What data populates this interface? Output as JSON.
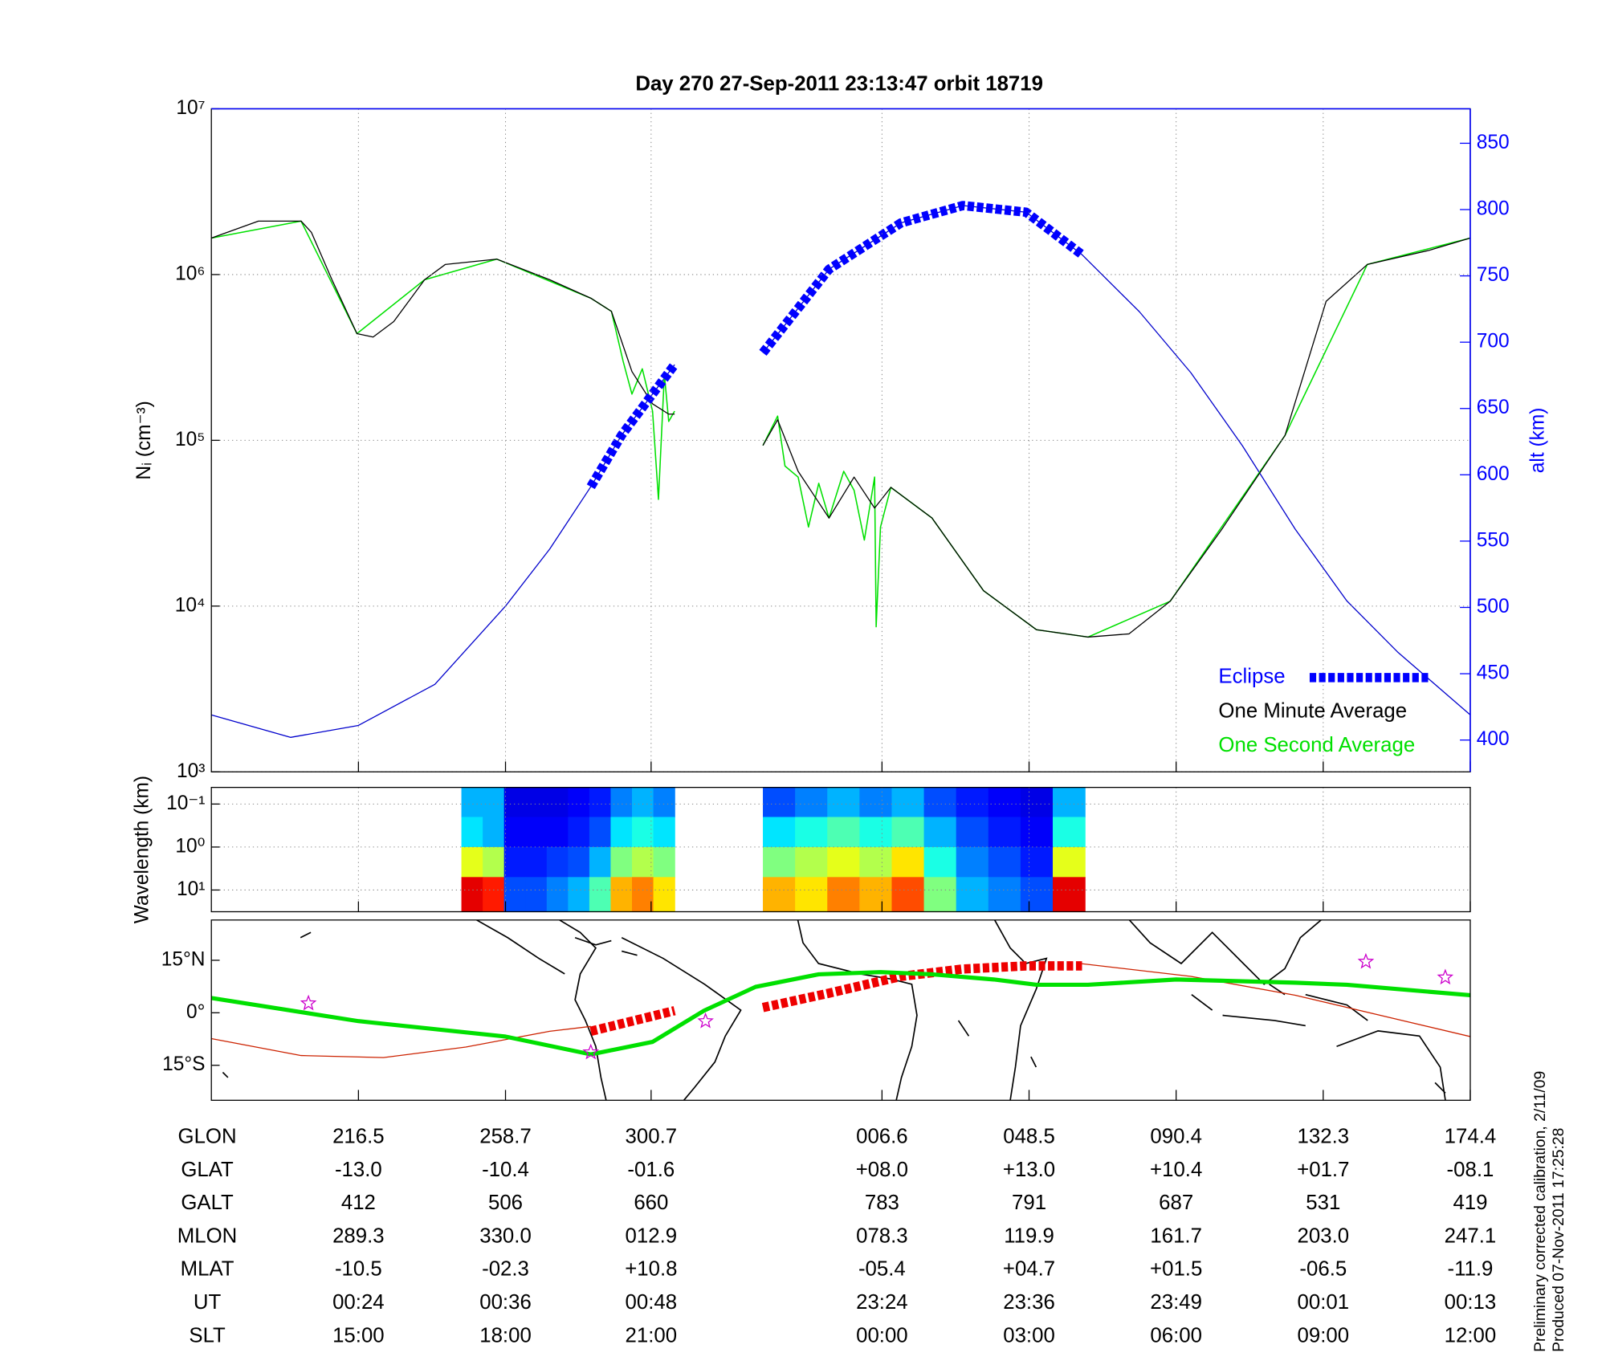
{
  "chart_data": [
    {
      "type": "line",
      "title": "Day 270  27-Sep-2011 23:13:47   orbit 18719",
      "ylabel": "Nᵢ (cm⁻³)",
      "y2label": "alt (km)",
      "log_y": true,
      "ylim": [
        1000,
        10000000
      ],
      "yticks": [
        {
          "value": 1000,
          "label": "10³"
        },
        {
          "value": 10000,
          "label": "10⁴"
        },
        {
          "value": 100000,
          "label": "10⁵"
        },
        {
          "value": 1000000,
          "label": "10⁶"
        },
        {
          "value": 10000000,
          "label": "10⁷"
        }
      ],
      "y2lim": [
        376,
        876
      ],
      "y2ticks": [
        400,
        450,
        500,
        550,
        600,
        650,
        700,
        750,
        800,
        850
      ],
      "y2color": "#0000ff",
      "xlim": [
        0,
        8.56
      ],
      "xticks": [
        1,
        2,
        2.99,
        4.56,
        5.56,
        6.56,
        7.56,
        8.56
      ],
      "grid": true,
      "legend": "lower right",
      "series": [
        {
          "name": "Eclipse",
          "color": "#0000ff",
          "axis": "y2",
          "line_width": 9,
          "dashed": true,
          "x": [
            2.58,
            2.79,
            3.15,
            null,
            3.75,
            4.2,
            4.69,
            5.11,
            5.54,
            5.92
          ],
          "values": [
            591,
            630,
            683,
            null,
            692,
            755,
            790,
            803,
            798,
            766
          ]
        },
        {
          "name": "One Minute Average",
          "color": "#000000",
          "line_width": 1,
          "x": [
            0,
            0.32,
            0.61,
            0.68,
            0.82,
            0.99,
            1.1,
            1.24,
            1.45,
            1.59,
            1.94,
            2.3,
            2.58,
            2.72,
            2.86,
            3.0,
            3.11,
            3.15,
            null,
            3.75,
            3.85,
            3.99,
            4.2,
            4.37,
            4.51,
            4.62,
            4.9,
            5.25,
            5.61,
            5.96,
            6.24,
            6.52,
            6.87,
            7.3,
            7.58,
            7.86,
            8.28,
            8.56
          ],
          "values": [
            1660000,
            2100000,
            2100000,
            1800000,
            930000,
            440000,
            420000,
            520000,
            930000,
            1150000,
            1240000,
            930000,
            720000,
            600000,
            260000,
            166000,
            144000,
            144000,
            null,
            93000,
            133000,
            65000,
            34000,
            60000,
            39000,
            52000,
            34000,
            12400,
            7200,
            6500,
            6800,
            10700,
            29000,
            107000,
            690000,
            1150000,
            1400000,
            1660000
          ]
        },
        {
          "name": "One Second Average",
          "color": "#00e000",
          "line_width": 1.2,
          "x": [
            0,
            0.61,
            0.99,
            1.45,
            1.94,
            2.58,
            2.72,
            2.8,
            2.86,
            2.93,
            3.0,
            3.04,
            3.08,
            3.11,
            3.15,
            null,
            3.75,
            3.85,
            3.9,
            3.99,
            4.06,
            4.13,
            4.2,
            4.3,
            4.37,
            4.44,
            4.51,
            4.52,
            4.55,
            4.62,
            4.9,
            5.25,
            5.61,
            5.96,
            6.52,
            7.3,
            7.86,
            8.56
          ],
          "values": [
            1660000,
            2100000,
            440000,
            930000,
            1240000,
            720000,
            600000,
            300000,
            190000,
            270000,
            150000,
            44000,
            250000,
            130000,
            150000,
            null,
            93000,
            140000,
            70000,
            60000,
            30000,
            55000,
            34000,
            65000,
            50000,
            25000,
            60000,
            7500,
            30000,
            52000,
            34000,
            12400,
            7200,
            6500,
            10700,
            107000,
            1150000,
            1660000
          ]
        },
        {
          "color": "#0000cc",
          "axis": "y2",
          "line_width": 1,
          "x": [
            0,
            0.54,
            1.0,
            1.52,
            2.0,
            2.3,
            2.58,
            2.79,
            3.15,
            null,
            3.75,
            4.2,
            4.69,
            5.11,
            5.54,
            5.92,
            6.31,
            6.66,
            7.01,
            7.37,
            7.72,
            8.07,
            8.56
          ],
          "values": [
            419,
            402,
            411,
            442,
            501,
            544,
            591,
            630,
            683,
            null,
            692,
            755,
            790,
            803,
            798,
            766,
            723,
            677,
            622,
            559,
            505,
            466,
            419
          ]
        }
      ]
    },
    {
      "type": "heatmap",
      "ylabel": "Wavelength (km)",
      "log_y": true,
      "y_inverted": true,
      "ylim": [
        0.041,
        32
      ],
      "yticks": [
        {
          "value": 0.1,
          "label": "10⁻¹"
        },
        {
          "value": 1,
          "label": "10⁰"
        },
        {
          "value": 10,
          "label": "10¹"
        }
      ],
      "xlim": [
        0,
        8.56
      ],
      "xticks": [
        1,
        2,
        2.99,
        4.56,
        5.56,
        6.56,
        7.56,
        8.56
      ],
      "grid": true,
      "colormap": "jet",
      "y_edges": [
        0.041,
        0.2,
        1,
        5,
        32
      ],
      "blocks": [
        {
          "x_edges": [
            1.7,
            1.845,
            1.99,
            2.135,
            2.28,
            2.425,
            2.57,
            2.715,
            2.86,
            3.005,
            3.15
          ],
          "z": [
            [
              0.3,
              0.3,
              0.1,
              0.1,
              0.1,
              0.12,
              0.15,
              0.25,
              0.3,
              0.25
            ],
            [
              0.35,
              0.3,
              0.12,
              0.12,
              0.12,
              0.15,
              0.2,
              0.35,
              0.4,
              0.35
            ],
            [
              0.6,
              0.55,
              0.15,
              0.15,
              0.18,
              0.2,
              0.3,
              0.5,
              0.55,
              0.5
            ],
            [
              0.9,
              0.85,
              0.2,
              0.2,
              0.25,
              0.3,
              0.45,
              0.7,
              0.75,
              0.65
            ]
          ]
        },
        {
          "x_edges": [
            3.75,
            3.969,
            4.188,
            4.407,
            4.626,
            4.845,
            5.064,
            5.283,
            5.502,
            5.721,
            5.94
          ],
          "z": [
            [
              0.2,
              0.25,
              0.3,
              0.25,
              0.3,
              0.2,
              0.15,
              0.12,
              0.1,
              0.3
            ],
            [
              0.35,
              0.4,
              0.45,
              0.4,
              0.45,
              0.3,
              0.2,
              0.15,
              0.12,
              0.4
            ],
            [
              0.5,
              0.55,
              0.6,
              0.55,
              0.65,
              0.4,
              0.25,
              0.2,
              0.15,
              0.6
            ],
            [
              0.7,
              0.65,
              0.75,
              0.7,
              0.8,
              0.5,
              0.3,
              0.25,
              0.2,
              0.9
            ]
          ]
        }
      ]
    },
    {
      "type": "map",
      "ylim": [
        -25,
        26.5
      ],
      "yticks": [
        {
          "value": 15,
          "label": "15°N"
        },
        {
          "value": 0,
          "label": "0°"
        },
        {
          "value": -15,
          "label": "15°S"
        }
      ],
      "xlim": [
        0,
        8.56
      ],
      "xticks": [
        1,
        2,
        2.99,
        4.56,
        5.56,
        6.56,
        7.56,
        8.56
      ],
      "grid": false,
      "series": [
        {
          "color": "#00e000",
          "line_width": 4,
          "x": [
            0,
            1.0,
            2.0,
            2.58,
            3.0,
            3.35,
            3.7,
            4.13,
            4.55,
            4.9,
            5.32,
            5.61,
            5.96,
            6.56,
            7.37,
            7.72,
            8.56
          ],
          "values": [
            4.2,
            -2.4,
            -6.8,
            -11.9,
            -8.3,
            0.6,
            7.4,
            11.0,
            11.6,
            11.0,
            9.5,
            8.0,
            8.0,
            9.5,
            8.6,
            8.0,
            5.0
          ]
        },
        {
          "color": "#cc2200",
          "line_width": 1,
          "x": [
            0,
            0.61,
            1.17,
            1.73,
            2.3,
            2.58,
            null,
            5.92,
            6.66,
            7.37,
            8.56
          ],
          "values": [
            -7.4,
            -12.2,
            -12.8,
            -9.8,
            -5.3,
            -3.9,
            null,
            14.0,
            10.4,
            5.0,
            -6.8
          ]
        },
        {
          "color": "#ee0000",
          "line_width": 9,
          "dashed": true,
          "x": [
            2.58,
            3.15,
            null,
            3.75,
            4.2,
            4.69,
            5.11,
            5.54,
            5.92
          ],
          "values": [
            -5.3,
            0.6,
            null,
            1.5,
            5.6,
            10.4,
            12.5,
            13.4,
            13.4
          ]
        }
      ],
      "markers": {
        "color": "#cc00cc",
        "x": [
          0.66,
          2.58,
          3.36,
          7.85,
          8.39
        ],
        "values": [
          2.7,
          -11.3,
          -2.4,
          14.6,
          10.1
        ]
      }
    }
  ],
  "table": {
    "rows": [
      {
        "label": "GLON",
        "values": [
          "216.5",
          "258.7",
          "300.7",
          "006.6",
          "048.5",
          "090.4",
          "132.3",
          "174.4"
        ]
      },
      {
        "label": "GLAT",
        "values": [
          "-13.0",
          "-10.4",
          "-01.6",
          "+08.0",
          "+13.0",
          "+10.4",
          "+01.7",
          "-08.1"
        ]
      },
      {
        "label": "GALT",
        "values": [
          "412",
          "506",
          "660",
          "783",
          "791",
          "687",
          "531",
          "419"
        ]
      },
      {
        "label": "MLON",
        "values": [
          "289.3",
          "330.0",
          "012.9",
          "078.3",
          "119.9",
          "161.7",
          "203.0",
          "247.1"
        ]
      },
      {
        "label": "MLAT",
        "values": [
          "-10.5",
          "-02.3",
          "+10.8",
          "-05.4",
          "+04.7",
          "+01.5",
          "-06.5",
          "-11.9"
        ]
      },
      {
        "label": "UT",
        "values": [
          "00:24",
          "00:36",
          "00:48",
          "23:24",
          "23:36",
          "23:49",
          "00:01",
          "00:13"
        ]
      },
      {
        "label": "SLT",
        "values": [
          "15:00",
          "18:00",
          "21:00",
          "00:00",
          "03:00",
          "06:00",
          "09:00",
          "12:00"
        ]
      }
    ]
  },
  "notes": [
    "Preliminary corrected calibration, 2/11/09",
    "Produced 07-Nov-2011 17:25:28"
  ]
}
